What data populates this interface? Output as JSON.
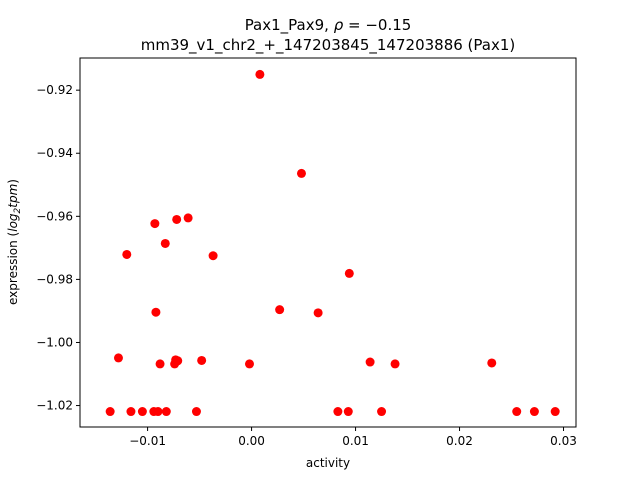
{
  "chart_data": {
    "type": "scatter",
    "title_line1_prefix": "Pax1_Pax9, ",
    "title_line1_rho": "ρ",
    "title_line1_suffix": " = −0.15",
    "title_line2": "mm39_v1_chr2_+_147203845_147203886 (Pax1)",
    "xlabel": "activity",
    "ylabel_prefix": "expression (",
    "ylabel_log": "log",
    "ylabel_sub": "2",
    "ylabel_tpm": "tpm",
    "ylabel_suffix": ")",
    "xlim": [
      -0.0165,
      0.0312
    ],
    "ylim": [
      -1.0268,
      -0.9098
    ],
    "xticks": [
      -0.01,
      0.0,
      0.01,
      0.02,
      0.03
    ],
    "xtick_labels": [
      "−0.01",
      "0.00",
      "0.01",
      "0.02",
      "0.03"
    ],
    "yticks": [
      -1.02,
      -1.0,
      -0.98,
      -0.96,
      -0.94,
      -0.92
    ],
    "ytick_labels": [
      "−1.02",
      "−1.00",
      "−0.98",
      "−0.96",
      "−0.94",
      "−0.92"
    ],
    "grid": false,
    "marker_color": "#ff0000",
    "points": [
      {
        "x": 0.0008,
        "y": -0.915
      },
      {
        "x": 0.0048,
        "y": -0.9464
      },
      {
        "x": -0.0093,
        "y": -0.9623
      },
      {
        "x": -0.0072,
        "y": -0.961
      },
      {
        "x": -0.0061,
        "y": -0.9605
      },
      {
        "x": -0.0083,
        "y": -0.9686
      },
      {
        "x": -0.012,
        "y": -0.9721
      },
      {
        "x": -0.0037,
        "y": -0.9725
      },
      {
        "x": 0.0094,
        "y": -0.9781
      },
      {
        "x": 0.0027,
        "y": -0.9896
      },
      {
        "x": 0.0064,
        "y": -0.9906
      },
      {
        "x": -0.0092,
        "y": -0.9904
      },
      {
        "x": -0.0128,
        "y": -1.0049
      },
      {
        "x": -0.0073,
        "y": -1.0055
      },
      {
        "x": -0.0071,
        "y": -1.0058
      },
      {
        "x": -0.0074,
        "y": -1.0068
      },
      {
        "x": -0.0088,
        "y": -1.0068
      },
      {
        "x": -0.0048,
        "y": -1.0057
      },
      {
        "x": -0.0002,
        "y": -1.0068
      },
      {
        "x": 0.0114,
        "y": -1.0062
      },
      {
        "x": 0.0138,
        "y": -1.0068
      },
      {
        "x": 0.0231,
        "y": -1.0065
      },
      {
        "x": -0.0136,
        "y": -1.0219
      },
      {
        "x": -0.0116,
        "y": -1.0219
      },
      {
        "x": -0.0105,
        "y": -1.0219
      },
      {
        "x": -0.0094,
        "y": -1.0219
      },
      {
        "x": -0.009,
        "y": -1.0219
      },
      {
        "x": -0.0082,
        "y": -1.0219
      },
      {
        "x": -0.0053,
        "y": -1.0219
      },
      {
        "x": 0.0083,
        "y": -1.0219
      },
      {
        "x": 0.0093,
        "y": -1.0219
      },
      {
        "x": 0.0125,
        "y": -1.0219
      },
      {
        "x": 0.0255,
        "y": -1.0219
      },
      {
        "x": 0.0272,
        "y": -1.0219
      },
      {
        "x": 0.0292,
        "y": -1.0219
      }
    ]
  }
}
